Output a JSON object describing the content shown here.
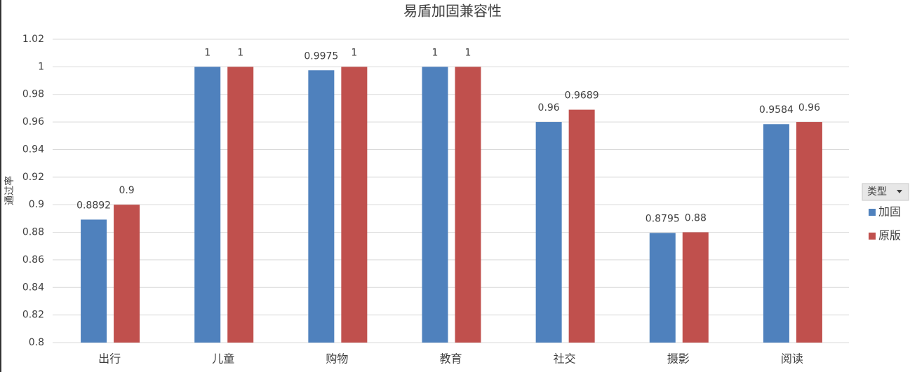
{
  "chart_data": {
    "type": "bar",
    "title": "易盾加固兼容性",
    "y_label": "通过率",
    "categories": [
      "出行",
      "儿童",
      "购物",
      "教育",
      "社交",
      "摄影",
      "阅读"
    ],
    "series": [
      {
        "name": "加固",
        "color": "#4f81bd",
        "values": [
          0.8892,
          1,
          0.9975,
          1,
          0.96,
          0.8795,
          0.9584
        ]
      },
      {
        "name": "原版",
        "color": "#c0504d",
        "values": [
          0.9,
          1,
          1,
          1,
          0.9689,
          0.88,
          0.96
        ]
      }
    ],
    "ylim": [
      0.8,
      1.02
    ],
    "yticks": [
      0.8,
      0.82,
      0.84,
      0.86,
      0.88,
      0.9,
      0.92,
      0.94,
      0.96,
      0.98,
      1,
      1.02
    ],
    "grid": true,
    "legend_title": "类型",
    "legend_position": "right"
  }
}
